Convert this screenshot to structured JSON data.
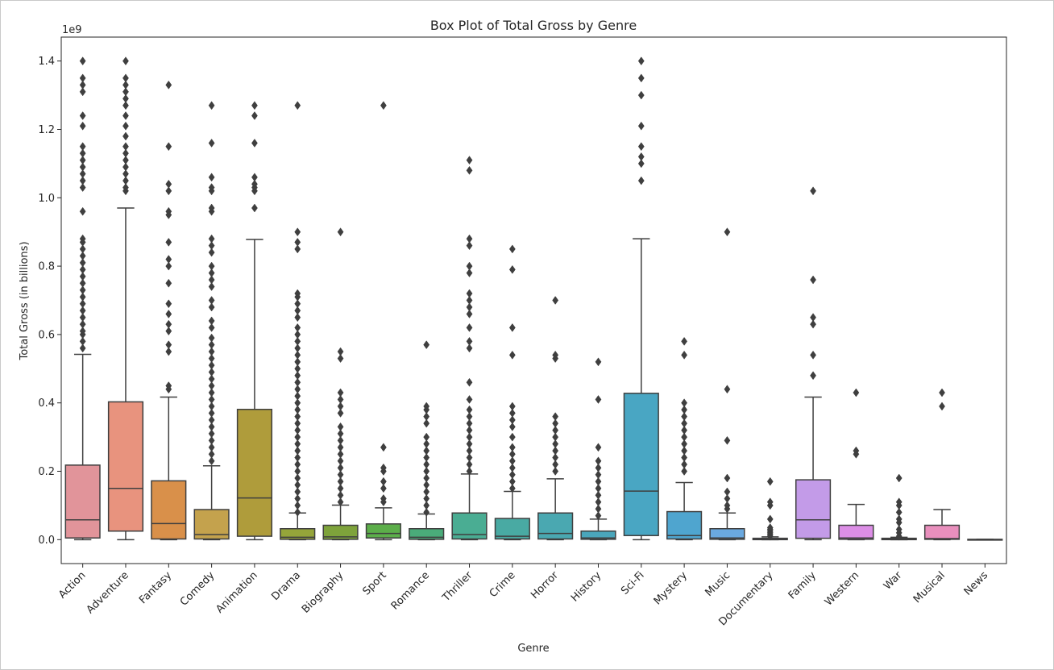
{
  "chart_data": {
    "type": "box",
    "title": "Box Plot of Total Gross by Genre",
    "xlabel": "Genre",
    "ylabel": "Total Gross (in billions)",
    "y_offset_label": "1e9",
    "ylim": [
      -0.07,
      1.47
    ],
    "yticks": [
      0.0,
      0.2,
      0.4,
      0.6,
      0.8,
      1.0,
      1.2,
      1.4
    ],
    "ytick_labels": [
      "0.0",
      "0.2",
      "0.4",
      "0.6",
      "0.8",
      "1.0",
      "1.2",
      "1.4"
    ],
    "grid": false,
    "legend": "none",
    "units": "1e9",
    "categories": [
      "Action",
      "Adventure",
      "Fantasy",
      "Comedy",
      "Animation",
      "Drama",
      "Biography",
      "Sport",
      "Romance",
      "Thriller",
      "Crime",
      "Horror",
      "History",
      "Sci-Fi",
      "Mystery",
      "Music",
      "Documentary",
      "Family",
      "Western",
      "War",
      "Musical",
      "News"
    ],
    "boxes": [
      {
        "category": "Action",
        "color": "#e1949a",
        "whisker_low": 0.0,
        "q1": 0.005,
        "median": 0.058,
        "q3": 0.218,
        "whisker_high": 0.542,
        "outliers": [
          0.56,
          0.58,
          0.6,
          0.61,
          0.63,
          0.65,
          0.67,
          0.69,
          0.71,
          0.73,
          0.75,
          0.77,
          0.79,
          0.81,
          0.83,
          0.85,
          0.87,
          0.88,
          0.96,
          1.03,
          1.05,
          1.07,
          1.09,
          1.11,
          1.13,
          1.15,
          1.21,
          1.24,
          1.31,
          1.33,
          1.35,
          1.4
        ]
      },
      {
        "category": "Adventure",
        "color": "#e8937e",
        "whisker_low": 0.0,
        "q1": 0.025,
        "median": 0.15,
        "q3": 0.403,
        "whisker_high": 0.97,
        "outliers": [
          1.02,
          1.03,
          1.05,
          1.07,
          1.09,
          1.11,
          1.13,
          1.15,
          1.18,
          1.21,
          1.24,
          1.27,
          1.29,
          1.31,
          1.33,
          1.35,
          1.4
        ]
      },
      {
        "category": "Fantasy",
        "color": "#d9904a",
        "whisker_low": 0.0,
        "q1": 0.002,
        "median": 0.047,
        "q3": 0.172,
        "whisker_high": 0.417,
        "outliers": [
          0.44,
          0.45,
          0.55,
          0.57,
          0.61,
          0.63,
          0.66,
          0.69,
          0.75,
          0.8,
          0.82,
          0.87,
          0.95,
          0.96,
          1.02,
          1.04,
          1.15,
          1.33
        ]
      },
      {
        "category": "Comedy",
        "color": "#c4a24d",
        "whisker_low": 0.0,
        "q1": 0.002,
        "median": 0.015,
        "q3": 0.088,
        "whisker_high": 0.216,
        "outliers": [
          0.23,
          0.25,
          0.27,
          0.29,
          0.31,
          0.33,
          0.35,
          0.37,
          0.39,
          0.41,
          0.43,
          0.45,
          0.47,
          0.49,
          0.51,
          0.53,
          0.55,
          0.57,
          0.59,
          0.62,
          0.64,
          0.68,
          0.7,
          0.74,
          0.76,
          0.78,
          0.8,
          0.84,
          0.86,
          0.88,
          0.96,
          0.97,
          1.02,
          1.03,
          1.06,
          1.16,
          1.27
        ]
      },
      {
        "category": "Animation",
        "color": "#af9c3b",
        "whisker_low": 0.0,
        "q1": 0.01,
        "median": 0.122,
        "q3": 0.381,
        "whisker_high": 0.878,
        "outliers": [
          0.97,
          1.02,
          1.03,
          1.04,
          1.06,
          1.16,
          1.24,
          1.27
        ]
      },
      {
        "category": "Drama",
        "color": "#95a53a",
        "whisker_low": 0.0,
        "q1": 0.001,
        "median": 0.007,
        "q3": 0.032,
        "whisker_high": 0.078,
        "outliers": [
          0.08,
          0.1,
          0.12,
          0.14,
          0.16,
          0.18,
          0.2,
          0.22,
          0.24,
          0.26,
          0.28,
          0.3,
          0.32,
          0.34,
          0.36,
          0.38,
          0.4,
          0.42,
          0.44,
          0.46,
          0.48,
          0.5,
          0.52,
          0.54,
          0.56,
          0.58,
          0.6,
          0.62,
          0.65,
          0.67,
          0.69,
          0.71,
          0.72,
          0.85,
          0.87,
          0.9,
          1.27
        ]
      },
      {
        "category": "Biography",
        "color": "#7ea33b",
        "whisker_low": 0.0,
        "q1": 0.001,
        "median": 0.008,
        "q3": 0.042,
        "whisker_high": 0.101,
        "outliers": [
          0.11,
          0.13,
          0.15,
          0.17,
          0.19,
          0.21,
          0.23,
          0.25,
          0.27,
          0.29,
          0.31,
          0.33,
          0.37,
          0.39,
          0.41,
          0.43,
          0.53,
          0.55,
          0.9
        ]
      },
      {
        "category": "Sport",
        "color": "#5cae4a",
        "whisker_low": 0.0,
        "q1": 0.005,
        "median": 0.018,
        "q3": 0.046,
        "whisker_high": 0.093,
        "outliers": [
          0.11,
          0.12,
          0.15,
          0.17,
          0.2,
          0.21,
          0.27,
          1.27
        ]
      },
      {
        "category": "Romance",
        "color": "#4aac7a",
        "whisker_low": 0.0,
        "q1": 0.001,
        "median": 0.007,
        "q3": 0.032,
        "whisker_high": 0.075,
        "outliers": [
          0.08,
          0.1,
          0.12,
          0.14,
          0.16,
          0.18,
          0.2,
          0.22,
          0.24,
          0.26,
          0.28,
          0.3,
          0.34,
          0.36,
          0.38,
          0.39,
          0.57
        ]
      },
      {
        "category": "Thriller",
        "color": "#4aad93",
        "whisker_low": 0.0,
        "q1": 0.002,
        "median": 0.015,
        "q3": 0.078,
        "whisker_high": 0.192,
        "outliers": [
          0.2,
          0.22,
          0.24,
          0.26,
          0.28,
          0.3,
          0.32,
          0.34,
          0.36,
          0.38,
          0.41,
          0.46,
          0.56,
          0.58,
          0.62,
          0.66,
          0.68,
          0.7,
          0.72,
          0.78,
          0.8,
          0.86,
          0.88,
          1.08,
          1.11
        ]
      },
      {
        "category": "Crime",
        "color": "#49aaa3",
        "whisker_low": 0.0,
        "q1": 0.002,
        "median": 0.01,
        "q3": 0.062,
        "whisker_high": 0.141,
        "outliers": [
          0.15,
          0.17,
          0.19,
          0.21,
          0.23,
          0.25,
          0.27,
          0.3,
          0.33,
          0.35,
          0.37,
          0.39,
          0.54,
          0.62,
          0.79,
          0.85
        ]
      },
      {
        "category": "Horror",
        "color": "#4aa8b1",
        "whisker_low": 0.0,
        "q1": 0.002,
        "median": 0.018,
        "q3": 0.078,
        "whisker_high": 0.178,
        "outliers": [
          0.2,
          0.22,
          0.24,
          0.26,
          0.28,
          0.3,
          0.32,
          0.34,
          0.36,
          0.53,
          0.54,
          0.7
        ]
      },
      {
        "category": "History",
        "color": "#4aa6bb",
        "whisker_low": 0.0,
        "q1": 0.001,
        "median": 0.005,
        "q3": 0.025,
        "whisker_high": 0.06,
        "outliers": [
          0.07,
          0.09,
          0.11,
          0.13,
          0.15,
          0.17,
          0.19,
          0.21,
          0.23,
          0.27,
          0.41,
          0.52
        ]
      },
      {
        "category": "Sci-Fi",
        "color": "#49a6c3",
        "whisker_low": 0.0,
        "q1": 0.012,
        "median": 0.142,
        "q3": 0.428,
        "whisker_high": 0.88,
        "outliers": [
          1.05,
          1.1,
          1.12,
          1.15,
          1.21,
          1.3,
          1.35,
          1.4
        ]
      },
      {
        "category": "Mystery",
        "color": "#4fa5cf",
        "whisker_low": 0.0,
        "q1": 0.002,
        "median": 0.012,
        "q3": 0.082,
        "whisker_high": 0.167,
        "outliers": [
          0.2,
          0.22,
          0.24,
          0.26,
          0.28,
          0.3,
          0.32,
          0.34,
          0.36,
          0.38,
          0.4,
          0.54,
          0.58
        ]
      },
      {
        "category": "Music",
        "color": "#6aa9e0",
        "whisker_low": 0.0,
        "q1": 0.001,
        "median": 0.005,
        "q3": 0.032,
        "whisker_high": 0.078,
        "outliers": [
          0.09,
          0.1,
          0.12,
          0.14,
          0.18,
          0.29,
          0.44,
          0.9
        ]
      },
      {
        "category": "Documentary",
        "color": "#93a8e6",
        "whisker_low": 0.0,
        "q1": 0.0,
        "median": 0.001,
        "q3": 0.004,
        "whisker_high": 0.008,
        "outliers": [
          0.01,
          0.015,
          0.02,
          0.025,
          0.03,
          0.035,
          0.06,
          0.1,
          0.11,
          0.17
        ]
      },
      {
        "category": "Family",
        "color": "#c39be8",
        "whisker_low": 0.0,
        "q1": 0.004,
        "median": 0.058,
        "q3": 0.175,
        "whisker_high": 0.417,
        "outliers": [
          0.48,
          0.54,
          0.63,
          0.65,
          0.76,
          1.02
        ]
      },
      {
        "category": "Western",
        "color": "#dc8ee6",
        "whisker_low": 0.0,
        "q1": 0.001,
        "median": 0.005,
        "q3": 0.042,
        "whisker_high": 0.103,
        "outliers": [
          0.25,
          0.26,
          0.43
        ]
      },
      {
        "category": "War",
        "color": "#e68fcd",
        "whisker_low": 0.0,
        "q1": 0.0,
        "median": 0.002,
        "q3": 0.004,
        "whisker_high": 0.007,
        "outliers": [
          0.01,
          0.02,
          0.03,
          0.05,
          0.06,
          0.08,
          0.1,
          0.11,
          0.18
        ]
      },
      {
        "category": "Musical",
        "color": "#e98fbd",
        "whisker_low": 0.0,
        "q1": 0.001,
        "median": 0.003,
        "q3": 0.042,
        "whisker_high": 0.088,
        "outliers": [
          0.39,
          0.43
        ]
      },
      {
        "category": "News",
        "color": "#e891ad",
        "whisker_low": 0.0,
        "q1": 0.0,
        "median": 0.0,
        "q3": 0.001,
        "whisker_high": 0.001,
        "outliers": []
      }
    ]
  }
}
